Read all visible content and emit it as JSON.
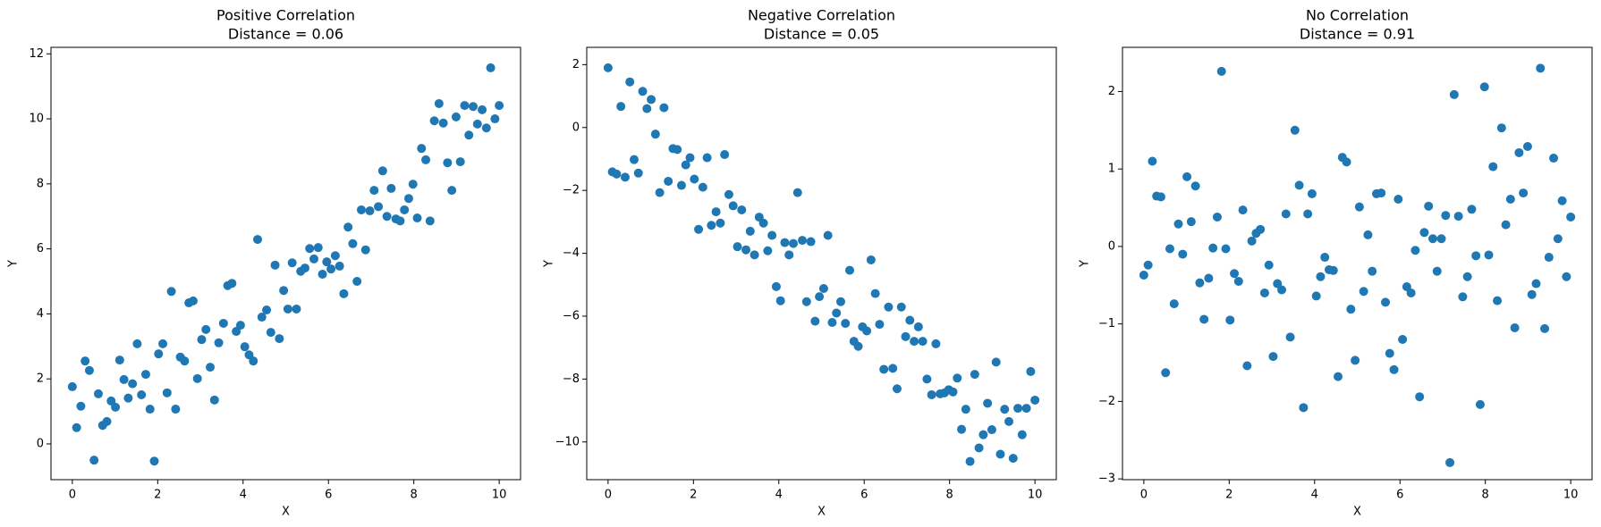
{
  "chart_data": [
    {
      "type": "scatter",
      "title": "Positive Correlation",
      "subtitle": "Distance = 0.06",
      "x_label": "X",
      "y_label": "Y",
      "color": "#1f77b4",
      "x": [
        0,
        0.1,
        0.2,
        0.3,
        0.4,
        0.51,
        0.61,
        0.71,
        0.81,
        0.91,
        1.01,
        1.11,
        1.21,
        1.31,
        1.41,
        1.52,
        1.62,
        1.72,
        1.82,
        1.92,
        2.02,
        2.12,
        2.22,
        2.32,
        2.42,
        2.53,
        2.63,
        2.73,
        2.83,
        2.93,
        3.03,
        3.13,
        3.23,
        3.33,
        3.43,
        3.54,
        3.64,
        3.74,
        3.84,
        3.94,
        4.04,
        4.14,
        4.24,
        4.34,
        4.44,
        4.55,
        4.65,
        4.75,
        4.85,
        4.95,
        5.05,
        5.15,
        5.25,
        5.35,
        5.45,
        5.56,
        5.66,
        5.76,
        5.86,
        5.96,
        6.06,
        6.16,
        6.26,
        6.36,
        6.46,
        6.57,
        6.67,
        6.77,
        6.87,
        6.97,
        7.07,
        7.17,
        7.27,
        7.37,
        7.47,
        7.58,
        7.68,
        7.78,
        7.88,
        7.98,
        8.08,
        8.18,
        8.28,
        8.38,
        8.48,
        8.59,
        8.69,
        8.79,
        8.89,
        8.99,
        9.09,
        9.19,
        9.29,
        9.39,
        9.49,
        9.6,
        9.7,
        9.8,
        9.9,
        10
      ],
      "values": [
        1.76,
        0.5,
        1.16,
        2.55,
        2.26,
        -0.5,
        1.54,
        0.57,
        0.69,
        1.32,
        1.13,
        2.58,
        1.98,
        1.41,
        1.85,
        3.08,
        1.51,
        2.14,
        1.07,
        -0.53,
        2.77,
        3.08,
        1.57,
        4.69,
        1.07,
        2.67,
        2.55,
        4.34,
        4.4,
        2.01,
        3.21,
        3.52,
        2.36,
        1.35,
        3.11,
        3.71,
        4.87,
        4.94,
        3.46,
        3.65,
        2.99,
        2.74,
        2.55,
        6.29,
        3.9,
        4.12,
        3.43,
        5.5,
        3.24,
        4.72,
        4.15,
        5.57,
        4.15,
        5.31,
        5.41,
        6.01,
        5.69,
        6.04,
        5.22,
        5.6,
        5.38,
        5.79,
        5.47,
        4.62,
        6.67,
        6.16,
        5.0,
        7.2,
        5.97,
        7.17,
        7.8,
        7.3,
        8.4,
        7.0,
        7.86,
        6.92,
        6.86,
        7.2,
        7.55,
        7.99,
        6.95,
        9.09,
        8.74,
        6.86,
        9.94,
        10.47,
        9.87,
        8.65,
        7.8,
        10.06,
        8.68,
        10.41,
        9.5,
        10.38,
        9.84,
        10.28,
        9.72,
        11.57,
        10.0,
        10.41
      ],
      "xlim": [
        -0.5,
        10.5
      ],
      "xticks": [
        0,
        2,
        4,
        6,
        8,
        10
      ],
      "ylim": [
        -1.1,
        12.2
      ],
      "yticks": [
        0,
        2,
        4,
        6,
        8,
        10,
        12
      ]
    },
    {
      "type": "scatter",
      "title": "Negative Correlation",
      "subtitle": "Distance = 0.05",
      "x_label": "X",
      "y_label": "Y",
      "color": "#1f77b4",
      "x": [
        0,
        0.1,
        0.2,
        0.3,
        0.4,
        0.51,
        0.61,
        0.71,
        0.81,
        0.91,
        1.01,
        1.11,
        1.21,
        1.31,
        1.41,
        1.52,
        1.62,
        1.72,
        1.82,
        1.92,
        2.02,
        2.12,
        2.22,
        2.32,
        2.42,
        2.53,
        2.63,
        2.73,
        2.83,
        2.93,
        3.03,
        3.13,
        3.23,
        3.33,
        3.43,
        3.54,
        3.64,
        3.74,
        3.84,
        3.94,
        4.04,
        4.14,
        4.24,
        4.34,
        4.44,
        4.55,
        4.65,
        4.75,
        4.85,
        4.95,
        5.05,
        5.15,
        5.25,
        5.35,
        5.45,
        5.56,
        5.66,
        5.76,
        5.86,
        5.96,
        6.06,
        6.16,
        6.26,
        6.36,
        6.46,
        6.57,
        6.67,
        6.77,
        6.87,
        6.97,
        7.07,
        7.17,
        7.27,
        7.37,
        7.47,
        7.58,
        7.68,
        7.78,
        7.88,
        7.98,
        8.08,
        8.18,
        8.28,
        8.38,
        8.48,
        8.59,
        8.69,
        8.79,
        8.89,
        8.99,
        9.09,
        9.19,
        9.29,
        9.39,
        9.49,
        9.6,
        9.7,
        9.8,
        9.9,
        10
      ],
      "values": [
        1.9,
        -1.41,
        -1.48,
        0.67,
        -1.58,
        1.45,
        -1.02,
        -1.45,
        1.15,
        0.6,
        0.89,
        -0.21,
        -2.07,
        0.63,
        -1.71,
        -0.67,
        -0.7,
        -1.84,
        -1.19,
        -0.96,
        -1.64,
        -3.24,
        -1.9,
        -0.96,
        -3.11,
        -2.68,
        -3.04,
        -0.86,
        -2.13,
        -2.49,
        -3.79,
        -2.62,
        -3.89,
        -3.3,
        -4.05,
        -2.85,
        -3.04,
        -3.92,
        -3.43,
        -5.06,
        -5.51,
        -3.66,
        -4.05,
        -3.69,
        -2.07,
        -3.59,
        -5.54,
        -3.63,
        -6.16,
        -5.38,
        -5.12,
        -3.43,
        -6.2,
        -5.9,
        -5.54,
        -6.23,
        -4.54,
        -6.8,
        -6.96,
        -6.34,
        -6.47,
        -4.21,
        -5.28,
        -6.26,
        -7.69,
        -5.71,
        -7.66,
        -8.31,
        -5.71,
        -6.65,
        -6.13,
        -6.8,
        -6.34,
        -6.8,
        -8.0,
        -8.5,
        -6.88,
        -8.47,
        -8.44,
        -8.34,
        -8.41,
        -7.97,
        -9.6,
        -8.96,
        -10.62,
        -7.85,
        -10.19,
        -9.77,
        -8.77,
        -9.61,
        -7.46,
        -10.39,
        -8.96,
        -9.35,
        -10.52,
        -8.93,
        -9.77,
        -8.93,
        -7.76,
        -8.67
      ],
      "xlim": [
        -0.5,
        10.5
      ],
      "xticks": [
        0,
        2,
        4,
        6,
        8,
        10
      ],
      "ylim": [
        -11.2,
        2.55
      ],
      "yticks": [
        -10,
        -8,
        -6,
        -4,
        -2,
        0,
        2
      ]
    },
    {
      "type": "scatter",
      "title": "No Correlation",
      "subtitle": "Distance = 0.91",
      "x_label": "X",
      "y_label": "Y",
      "color": "#1f77b4",
      "x": [
        0,
        0.1,
        0.2,
        0.3,
        0.4,
        0.51,
        0.61,
        0.71,
        0.81,
        0.91,
        1.01,
        1.11,
        1.21,
        1.31,
        1.41,
        1.52,
        1.62,
        1.72,
        1.82,
        1.92,
        2.02,
        2.12,
        2.22,
        2.32,
        2.42,
        2.53,
        2.63,
        2.73,
        2.83,
        2.93,
        3.03,
        3.13,
        3.23,
        3.33,
        3.43,
        3.54,
        3.64,
        3.74,
        3.84,
        3.94,
        4.04,
        4.14,
        4.24,
        4.34,
        4.44,
        4.55,
        4.65,
        4.75,
        4.85,
        4.95,
        5.05,
        5.15,
        5.25,
        5.35,
        5.45,
        5.56,
        5.66,
        5.76,
        5.86,
        5.96,
        6.06,
        6.16,
        6.26,
        6.36,
        6.46,
        6.57,
        6.67,
        6.77,
        6.87,
        6.97,
        7.07,
        7.17,
        7.27,
        7.37,
        7.47,
        7.58,
        7.68,
        7.78,
        7.88,
        7.98,
        8.08,
        8.18,
        8.28,
        8.38,
        8.48,
        8.59,
        8.69,
        8.79,
        8.89,
        8.99,
        9.09,
        9.19,
        9.29,
        9.39,
        9.49,
        9.6,
        9.7,
        9.8,
        9.9,
        10
      ],
      "values": [
        -0.37,
        -0.24,
        1.1,
        0.65,
        0.64,
        -1.63,
        -0.03,
        -0.74,
        0.29,
        -0.1,
        0.9,
        0.32,
        0.78,
        -0.47,
        -0.94,
        -0.41,
        -0.02,
        0.38,
        2.26,
        -0.03,
        -0.95,
        -0.35,
        -0.45,
        0.47,
        -1.54,
        0.07,
        0.17,
        0.22,
        -0.6,
        -0.24,
        -1.42,
        -0.48,
        -0.56,
        0.42,
        -1.17,
        1.5,
        0.79,
        -2.08,
        0.42,
        0.68,
        -0.64,
        -0.39,
        -0.14,
        -0.3,
        -0.31,
        -1.68,
        1.15,
        1.09,
        -0.81,
        -1.47,
        0.51,
        -0.58,
        0.15,
        -0.32,
        0.68,
        0.69,
        -0.72,
        -1.38,
        -1.59,
        0.61,
        -1.2,
        -0.52,
        -0.6,
        -0.05,
        -1.94,
        0.18,
        0.52,
        0.1,
        -0.32,
        0.1,
        0.4,
        -2.79,
        1.96,
        0.39,
        -0.65,
        -0.39,
        0.48,
        -0.12,
        -2.04,
        2.06,
        -0.11,
        1.03,
        -0.7,
        1.53,
        0.28,
        0.61,
        -1.05,
        1.21,
        0.69,
        1.29,
        -0.62,
        -0.48,
        2.3,
        -1.06,
        -0.14,
        1.14,
        0.1,
        0.59,
        -0.39,
        0.38
      ],
      "xlim": [
        -0.5,
        10.5
      ],
      "xticks": [
        0,
        2,
        4,
        6,
        8,
        10
      ],
      "ylim": [
        -3.01,
        2.57
      ],
      "yticks": [
        -3,
        -2,
        -1,
        0,
        1,
        2
      ]
    }
  ]
}
